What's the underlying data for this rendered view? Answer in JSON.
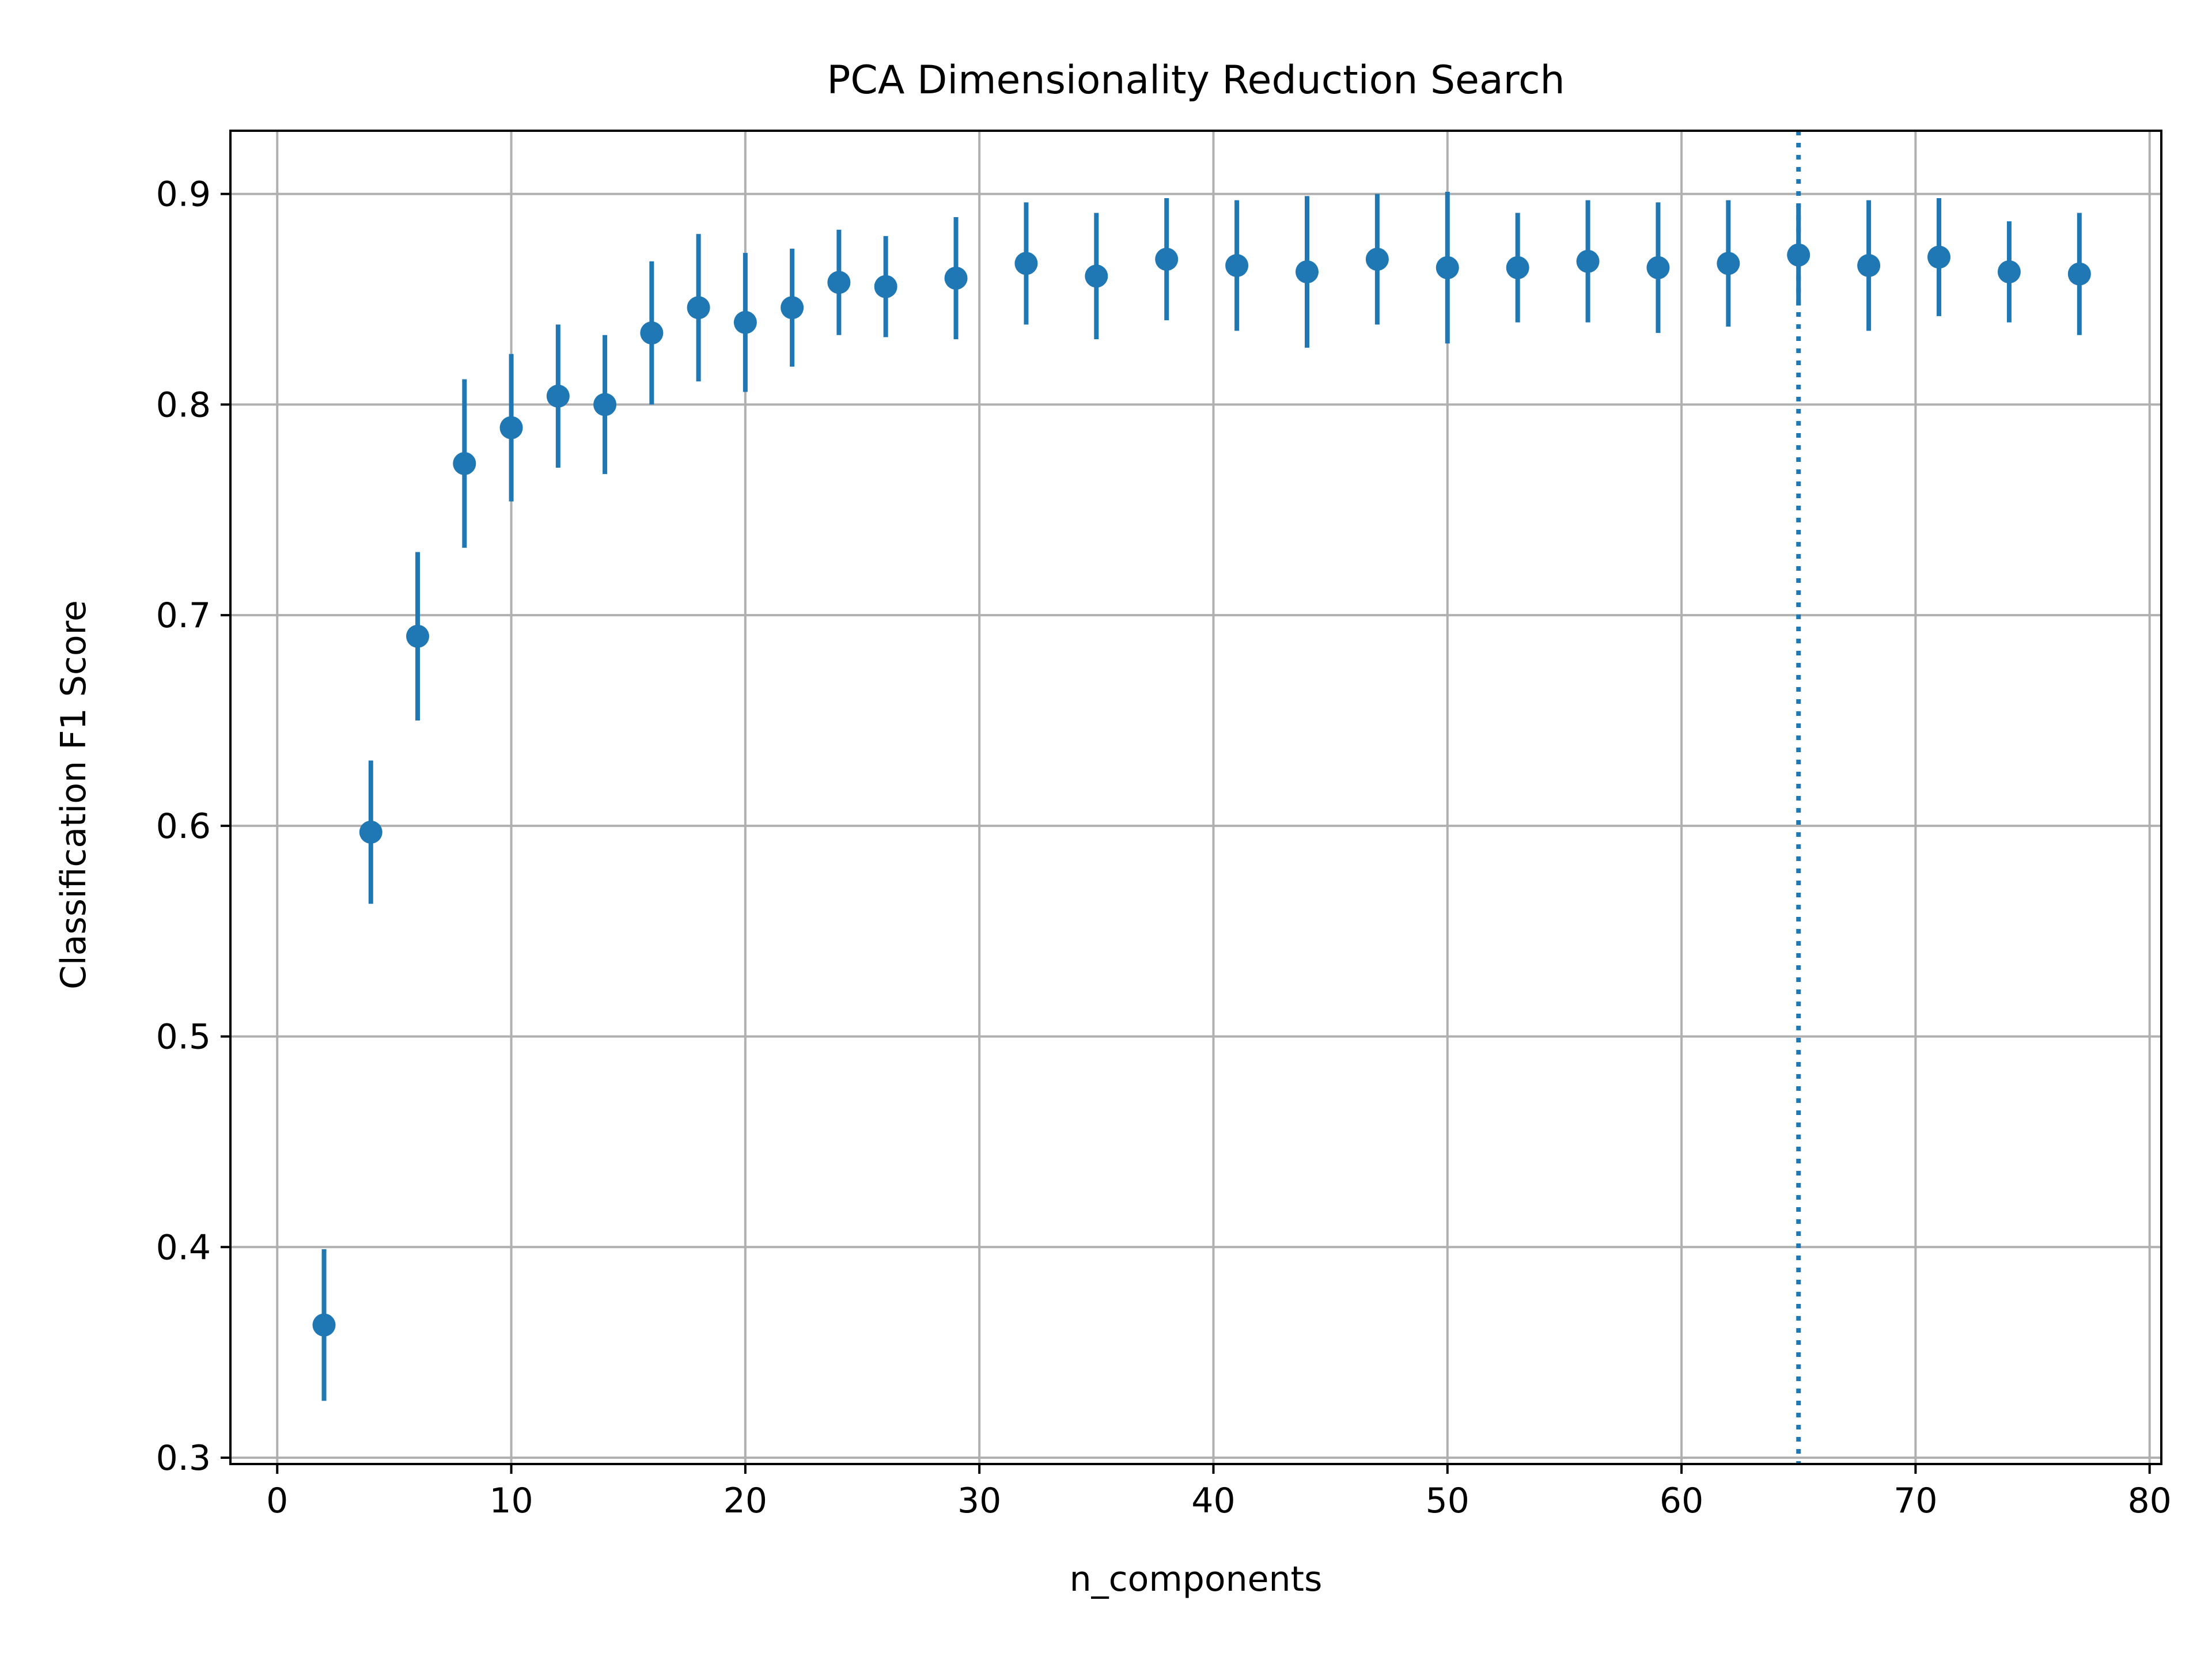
{
  "chart_data": {
    "type": "scatter",
    "title": "PCA Dimensionality Reduction Search",
    "xlabel": "n_components",
    "ylabel": "Classification F1 Score",
    "xlim": [
      -2,
      80.5
    ],
    "ylim": [
      0.297,
      0.93
    ],
    "xticks": [
      0,
      10,
      20,
      30,
      40,
      50,
      60,
      70,
      80
    ],
    "yticks": [
      0.3,
      0.4,
      0.5,
      0.6,
      0.7,
      0.8,
      0.9
    ],
    "xtick_labels": [
      "0",
      "10",
      "20",
      "30",
      "40",
      "50",
      "60",
      "70",
      "80"
    ],
    "ytick_labels": [
      "0.3",
      "0.4",
      "0.5",
      "0.6",
      "0.7",
      "0.8",
      "0.9"
    ],
    "grid": true,
    "marker_color": "#1f77b4",
    "vline": {
      "x": 65,
      "style": "dotted",
      "color": "#1f77b4"
    },
    "series": [
      {
        "x": [
          2,
          4,
          6,
          8,
          10,
          12,
          14,
          16,
          18,
          20,
          22,
          24,
          26,
          29,
          32,
          35,
          38,
          41,
          44,
          47,
          50,
          53,
          56,
          59,
          62,
          65,
          68,
          71,
          74,
          77
        ],
        "y": [
          0.363,
          0.597,
          0.69,
          0.772,
          0.789,
          0.804,
          0.8,
          0.834,
          0.846,
          0.839,
          0.846,
          0.858,
          0.856,
          0.86,
          0.867,
          0.861,
          0.869,
          0.866,
          0.863,
          0.869,
          0.865,
          0.865,
          0.868,
          0.865,
          0.867,
          0.871,
          0.866,
          0.87,
          0.863,
          0.862
        ],
        "err": [
          0.036,
          0.034,
          0.04,
          0.04,
          0.035,
          0.034,
          0.033,
          0.034,
          0.035,
          0.033,
          0.028,
          0.025,
          0.024,
          0.029,
          0.029,
          0.03,
          0.029,
          0.031,
          0.036,
          0.031,
          0.036,
          0.026,
          0.029,
          0.031,
          0.03,
          0.024,
          0.031,
          0.028,
          0.024,
          0.029
        ]
      }
    ]
  }
}
